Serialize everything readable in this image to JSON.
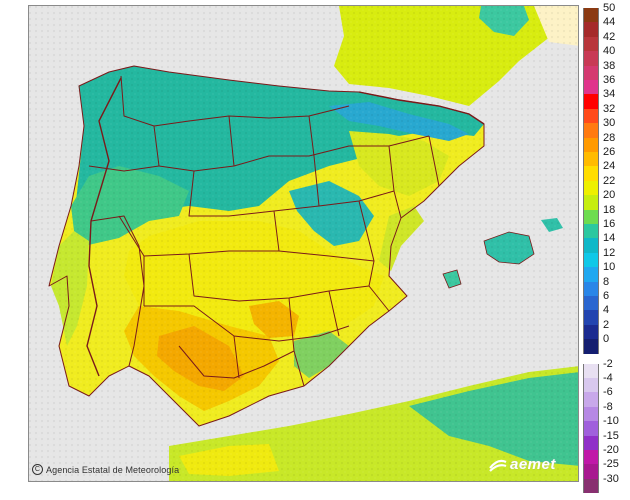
{
  "credit": {
    "text": "Agencia Estatal de Meteorología"
  },
  "brand": {
    "text": "aemet",
    "icon": "aemet-logo-icon"
  },
  "sea_color": "#e6e6e6",
  "border_color": "#7a1a1a",
  "legend": {
    "labels": [
      "50",
      "44",
      "42",
      "40",
      "38",
      "36",
      "34",
      "32",
      "30",
      "28",
      "26",
      "24",
      "22",
      "20",
      "18",
      "16",
      "14",
      "12",
      "10",
      "8",
      "6",
      "4",
      "2",
      "0",
      "-2",
      "-4",
      "-6",
      "-8",
      "-10",
      "-15",
      "-20",
      "-25",
      "-30"
    ],
    "colors": [
      "#8b3a12",
      "#a52a2a",
      "#b8363b",
      "#c83a55",
      "#d43a70",
      "#e0348c",
      "#ff0000",
      "#ff4a1a",
      "#ff7a10",
      "#ff9a00",
      "#ffbb00",
      "#ffdd00",
      "#eef000",
      "#c6ee10",
      "#6edc50",
      "#2cc8a0",
      "#10b8c8",
      "#10c8e8",
      "#20a8f0",
      "#2a86e8",
      "#2a66d0",
      "#2244b0",
      "#1a2a90",
      "#141e70",
      "#e8e0f2",
      "#d8c8ee",
      "#c8a8ea",
      "#b688e4",
      "#a060dc",
      "#9030c8",
      "#c018a8",
      "#a81890",
      "#883070"
    ]
  }
}
